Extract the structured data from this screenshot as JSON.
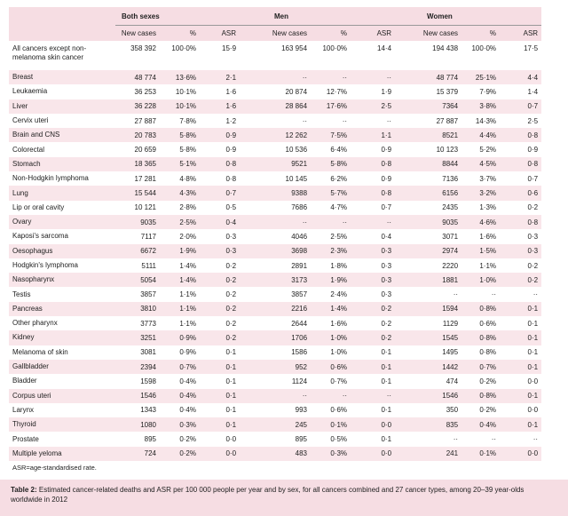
{
  "header": {
    "groups": [
      "Both sexes",
      "Men",
      "Women"
    ],
    "subheaders": [
      "New cases",
      "%",
      "ASR",
      "New cases",
      "%",
      "ASR",
      "New cases",
      "%",
      "ASR"
    ]
  },
  "table": {
    "rows": [
      [
        "All cancers except non-melanoma skin cancer",
        "358 392",
        "100·0%",
        "15·9",
        "163 954",
        "100·0%",
        "14·4",
        "194 438",
        "100·0%",
        "17·5"
      ],
      [
        "Breast",
        "48 774",
        "13·6%",
        "2·1",
        "··",
        "··",
        "··",
        "48 774",
        "25·1%",
        "4·4"
      ],
      [
        "Leukaemia",
        "36 253",
        "10·1%",
        "1·6",
        "20 874",
        "12·7%",
        "1·9",
        "15 379",
        "7·9%",
        "1·4"
      ],
      [
        "Liver",
        "36 228",
        "10·1%",
        "1·6",
        "28 864",
        "17·6%",
        "2·5",
        "7364",
        "3·8%",
        "0·7"
      ],
      [
        "Cervix uteri",
        "27 887",
        "7·8%",
        "1·2",
        "··",
        "··",
        "··",
        "27 887",
        "14·3%",
        "2·5"
      ],
      [
        "Brain and CNS",
        "20 783",
        "5·8%",
        "0·9",
        "12 262",
        "7·5%",
        "1·1",
        "8521",
        "4·4%",
        "0·8"
      ],
      [
        "Colorectal",
        "20 659",
        "5·8%",
        "0·9",
        "10 536",
        "6·4%",
        "0·9",
        "10 123",
        "5·2%",
        "0·9"
      ],
      [
        "Stomach",
        "18 365",
        "5·1%",
        "0·8",
        "9521",
        "5·8%",
        "0·8",
        "8844",
        "4·5%",
        "0·8"
      ],
      [
        "Non-Hodgkin lymphoma",
        "17 281",
        "4·8%",
        "0·8",
        "10 145",
        "6·2%",
        "0·9",
        "7136",
        "3·7%",
        "0·7"
      ],
      [
        "Lung",
        "15 544",
        "4·3%",
        "0·7",
        "9388",
        "5·7%",
        "0·8",
        "6156",
        "3·2%",
        "0·6"
      ],
      [
        "Lip or oral cavity",
        "10 121",
        "2·8%",
        "0·5",
        "7686",
        "4·7%",
        "0·7",
        "2435",
        "1·3%",
        "0·2"
      ],
      [
        "Ovary",
        "9035",
        "2·5%",
        "0·4",
        "··",
        "··",
        "··",
        "9035",
        "4·6%",
        "0·8"
      ],
      [
        "Kaposi's sarcoma",
        "7117",
        "2·0%",
        "0·3",
        "4046",
        "2·5%",
        "0·4",
        "3071",
        "1·6%",
        "0·3"
      ],
      [
        "Oesophagus",
        "6672",
        "1·9%",
        "0·3",
        "3698",
        "2·3%",
        "0·3",
        "2974",
        "1·5%",
        "0·3"
      ],
      [
        "Hodgkin's lymphoma",
        "5111",
        "1·4%",
        "0·2",
        "2891",
        "1·8%",
        "0·3",
        "2220",
        "1·1%",
        "0·2"
      ],
      [
        "Nasopharynx",
        "5054",
        "1·4%",
        "0·2",
        "3173",
        "1·9%",
        "0·3",
        "1881",
        "1·0%",
        "0·2"
      ],
      [
        "Testis",
        "3857",
        "1·1%",
        "0·2",
        "3857",
        "2·4%",
        "0·3",
        "··",
        "··",
        "··"
      ],
      [
        "Pancreas",
        "3810",
        "1·1%",
        "0·2",
        "2216",
        "1·4%",
        "0·2",
        "1594",
        "0·8%",
        "0·1"
      ],
      [
        "Other pharynx",
        "3773",
        "1·1%",
        "0·2",
        "2644",
        "1·6%",
        "0·2",
        "1129",
        "0·6%",
        "0·1"
      ],
      [
        "Kidney",
        "3251",
        "0·9%",
        "0·2",
        "1706",
        "1·0%",
        "0·2",
        "1545",
        "0·8%",
        "0·1"
      ],
      [
        "Melanoma of skin",
        "3081",
        "0·9%",
        "0·1",
        "1586",
        "1·0%",
        "0·1",
        "1495",
        "0·8%",
        "0·1"
      ],
      [
        "Gallbladder",
        "2394",
        "0·7%",
        "0·1",
        "952",
        "0·6%",
        "0·1",
        "1442",
        "0·7%",
        "0·1"
      ],
      [
        "Bladder",
        "1598",
        "0·4%",
        "0·1",
        "1124",
        "0·7%",
        "0·1",
        "474",
        "0·2%",
        "0·0"
      ],
      [
        "Corpus uteri",
        "1546",
        "0·4%",
        "0·1",
        "··",
        "··",
        "··",
        "1546",
        "0·8%",
        "0·1"
      ],
      [
        "Larynx",
        "1343",
        "0·4%",
        "0·1",
        "993",
        "0·6%",
        "0·1",
        "350",
        "0·2%",
        "0·0"
      ],
      [
        "Thyroid",
        "1080",
        "0·3%",
        "0·1",
        "245",
        "0·1%",
        "0·0",
        "835",
        "0·4%",
        "0·1"
      ],
      [
        "Prostate",
        "895",
        "0·2%",
        "0·0",
        "895",
        "0·5%",
        "0·1",
        "··",
        "··",
        "··"
      ],
      [
        "Multiple yeloma",
        "724",
        "0·2%",
        "0·0",
        "483",
        "0·3%",
        "0·0",
        "241",
        "0·1%",
        "0·0"
      ]
    ]
  },
  "footnote": "ASR=age-standardised rate.",
  "caption": {
    "label": "Table 2:",
    "text": "Estimated cancer-related deaths and ASR per 100 000 people per year and by sex, for all cancers combined and 27 cancer types, among 20–39 year-olds worldwide in 2012"
  }
}
